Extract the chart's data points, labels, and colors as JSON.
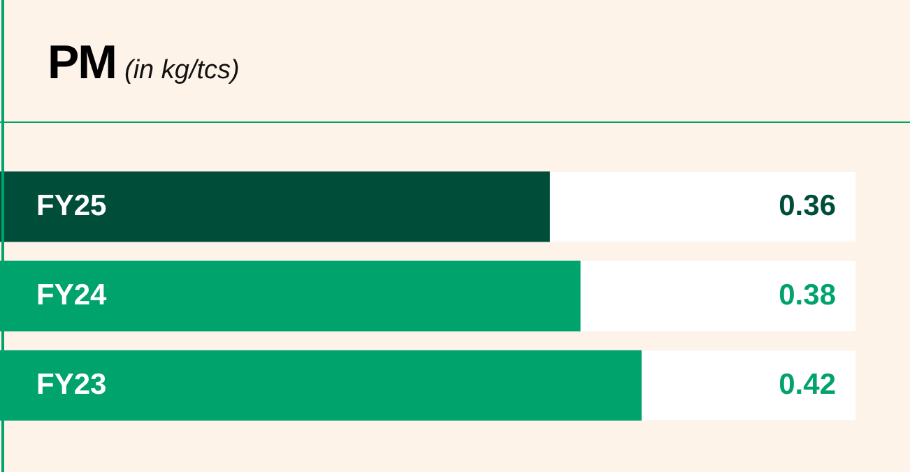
{
  "chart_data": {
    "type": "bar",
    "orientation": "horizontal",
    "title": "PM",
    "subtitle": "(in kg/tcs)",
    "categories": [
      "FY25",
      "FY24",
      "FY23"
    ],
    "values": [
      0.36,
      0.38,
      0.42
    ],
    "colors": [
      "#004d3a",
      "#00a36c",
      "#00a36c"
    ],
    "xlim": [
      0,
      0.56
    ],
    "tick_labels": false,
    "data_labels": true,
    "ref_lines": [
      {
        "axis": "x",
        "value": 0,
        "color": "#00a36c"
      }
    ]
  }
}
